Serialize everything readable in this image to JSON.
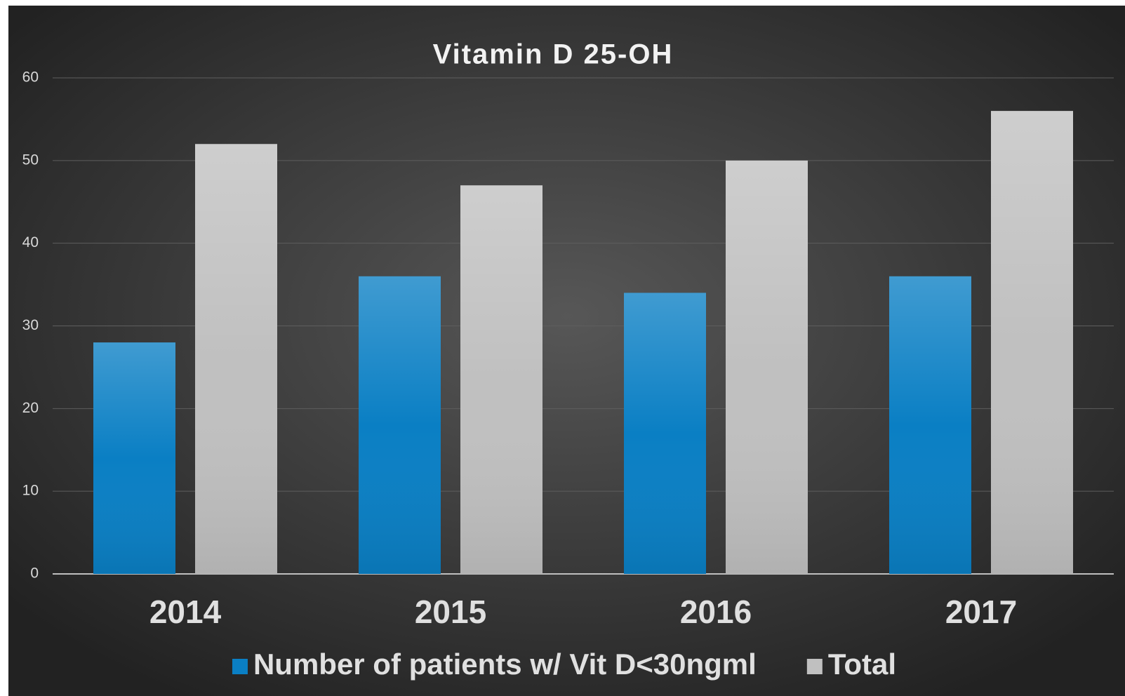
{
  "chart_data": {
    "type": "bar",
    "title": "Vitamin D 25-OH",
    "categories": [
      "2014",
      "2015",
      "2016",
      "2017"
    ],
    "series": [
      {
        "name": "Number of patients w/ Vit D<30ngml",
        "color": "#0a7fc4",
        "values": [
          28,
          36,
          34,
          36
        ]
      },
      {
        "name": "Total",
        "color": "#c0c0c0",
        "values": [
          52,
          47,
          50,
          56
        ]
      }
    ],
    "ylim": [
      0,
      60
    ],
    "yticks": [
      0,
      10,
      20,
      30,
      40,
      50,
      60
    ],
    "grid": true,
    "legend": "bottom"
  }
}
